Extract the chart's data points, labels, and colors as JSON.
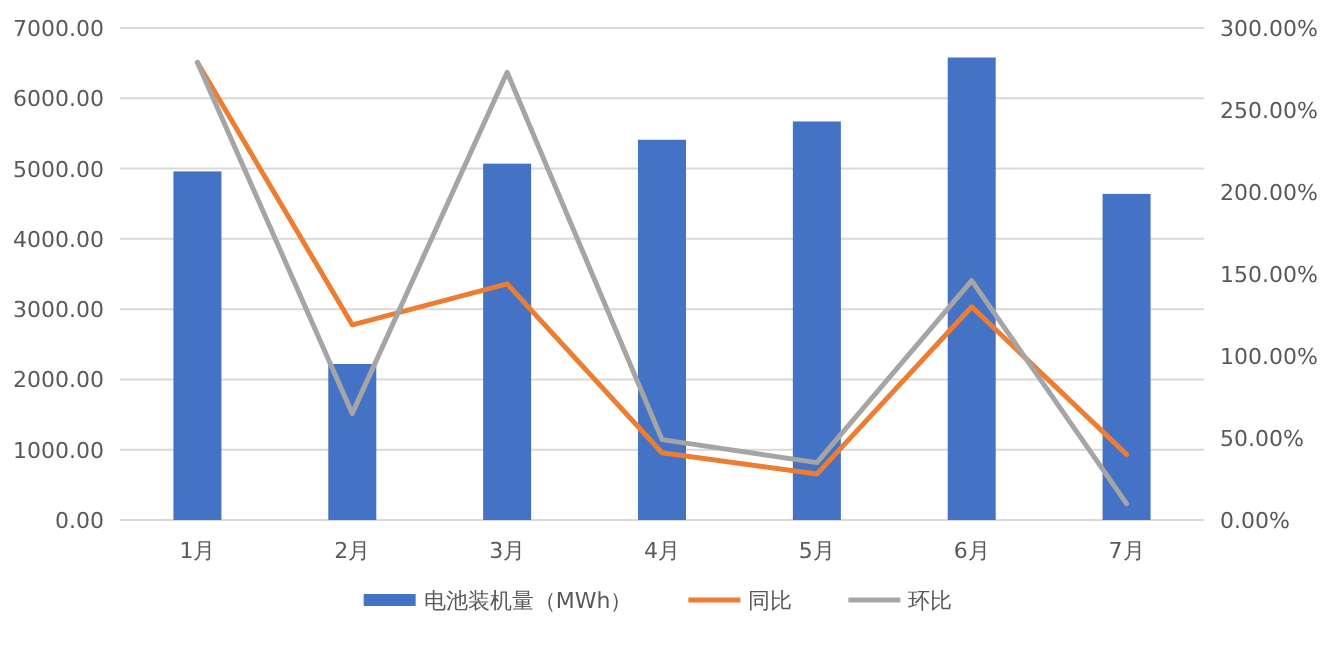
{
  "chart_data": {
    "type": "bar",
    "categories": [
      "1月",
      "2月",
      "3月",
      "4月",
      "5月",
      "6月",
      "7月"
    ],
    "series": [
      {
        "name": "电池装机量（MWh）",
        "color": "#4472c4",
        "values": [
          4960,
          2220,
          5070,
          5410,
          5670,
          6580,
          4640
        ]
      },
      {
        "name": "同比",
        "type": "line",
        "axis": "y2",
        "color": "#ed7d31",
        "values": [
          279,
          119,
          144,
          41,
          28,
          130,
          40
        ]
      },
      {
        "name": "环比",
        "type": "line",
        "axis": "y2",
        "color": "#a5a5a5",
        "values": [
          279,
          65,
          273,
          49,
          35,
          146,
          10
        ]
      }
    ],
    "ylim": [
      0,
      7000
    ],
    "yticks": [
      {
        "value": 0,
        "label": "0.00"
      },
      {
        "value": 1000,
        "label": "1000.00"
      },
      {
        "value": 2000,
        "label": "2000.00"
      },
      {
        "value": 3000,
        "label": "3000.00"
      },
      {
        "value": 4000,
        "label": "4000.00"
      },
      {
        "value": 5000,
        "label": "5000.00"
      },
      {
        "value": 6000,
        "label": "6000.00"
      },
      {
        "value": 7000,
        "label": "7000.00"
      }
    ],
    "y2lim": [
      0,
      300
    ],
    "y2ticks": [
      {
        "value": 0,
        "label": "0.00%"
      },
      {
        "value": 50,
        "label": "50.00%"
      },
      {
        "value": 100,
        "label": "100.00%"
      },
      {
        "value": 150,
        "label": "150.00%"
      },
      {
        "value": 200,
        "label": "200.00%"
      },
      {
        "value": 250,
        "label": "250.00%"
      },
      {
        "value": 300,
        "label": "300.00%"
      }
    ],
    "grid": "y",
    "legend": "bottom"
  }
}
